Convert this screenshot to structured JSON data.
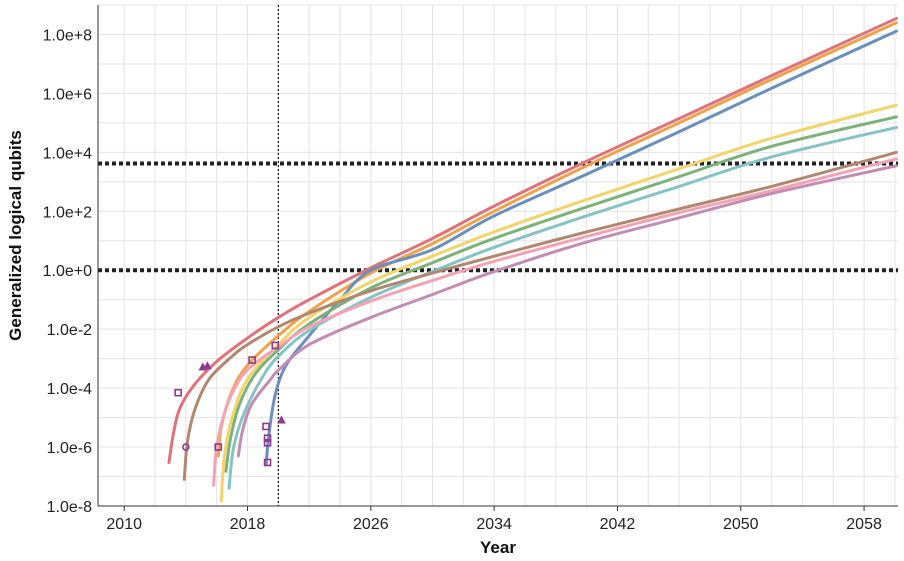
{
  "chart_data": {
    "type": "line",
    "title": "",
    "xlabel": "Year",
    "ylabel": "Generalized logical qubits",
    "y_scale": "log10",
    "xlim": [
      2008.3,
      2060.2
    ],
    "ylim": [
      1e-08,
      1000000000.0
    ],
    "x_ticks": [
      2010,
      2018,
      2026,
      2034,
      2042,
      2050,
      2058
    ],
    "x_tick_labels": [
      "2010",
      "2018",
      "2026",
      "2034",
      "2042",
      "2050",
      "2058"
    ],
    "y_ticks": [
      1e-08,
      1e-06,
      0.0001,
      0.01,
      1,
      100.0,
      10000.0,
      1000000.0,
      100000000.0
    ],
    "y_tick_labels": [
      "1.0e-8",
      "1.0e-6",
      "1.0e-4",
      "1.0e-2",
      "1.0e+0",
      "1.0e+2",
      "1.0e+4",
      "1.0e+6",
      "1.0e+8"
    ],
    "grid": true,
    "legend": "none",
    "reference_lines": {
      "horizontal": [
        {
          "y": 4200,
          "style": "dotted",
          "color": "#222222"
        },
        {
          "y": 1,
          "style": "dotted",
          "color": "#222222"
        }
      ],
      "vertical": [
        {
          "x": 2020.0,
          "style": "dotted",
          "color": "#222222"
        }
      ]
    },
    "series": [
      {
        "color": "#e0737a",
        "points": [
          [
            2012.9,
            3e-07
          ],
          [
            2013.2,
            3e-06
          ],
          [
            2013.6,
            2e-05
          ],
          [
            2014.5,
            0.00012
          ],
          [
            2016,
            0.0008
          ],
          [
            2018,
            0.005
          ],
          [
            2020,
            0.025
          ],
          [
            2022,
            0.1
          ],
          [
            2026,
            1.2
          ],
          [
            2030,
            12
          ],
          [
            2034,
            150
          ],
          [
            2040,
            5000
          ],
          [
            2046,
            140000.0
          ],
          [
            2052,
            4000000.0
          ],
          [
            2060.1,
            350000000.0
          ]
        ]
      },
      {
        "color": "#f0a24a",
        "points": [
          [
            2016.1,
            5e-07
          ],
          [
            2016.3,
            5e-06
          ],
          [
            2017,
            8e-05
          ],
          [
            2018,
            0.0006
          ],
          [
            2020,
            0.006
          ],
          [
            2022,
            0.04
          ],
          [
            2026,
            0.8
          ],
          [
            2030,
            8
          ],
          [
            2034,
            100
          ],
          [
            2040,
            3500
          ],
          [
            2046,
            100000.0
          ],
          [
            2052,
            3000000.0
          ],
          [
            2060.1,
            250000000.0
          ]
        ]
      },
      {
        "color": "#6a8fbd",
        "points": [
          [
            2019.2,
            2.5e-07
          ],
          [
            2019.4,
            3e-06
          ],
          [
            2019.8,
            6e-05
          ],
          [
            2020.5,
            0.0006
          ],
          [
            2022,
            0.006
          ],
          [
            2024,
            0.1
          ],
          [
            2026,
            1
          ],
          [
            2030,
            5
          ],
          [
            2034,
            70
          ],
          [
            2040,
            1800
          ],
          [
            2046,
            50000.0
          ],
          [
            2052,
            1500000.0
          ],
          [
            2060.1,
            130000000.0
          ]
        ]
      },
      {
        "color": "#f2d46a",
        "points": [
          [
            2016.3,
            1.5e-08
          ],
          [
            2016.5,
            5e-07
          ],
          [
            2017,
            1e-05
          ],
          [
            2018,
            0.0002
          ],
          [
            2020,
            0.003
          ],
          [
            2022,
            0.025
          ],
          [
            2026,
            0.4
          ],
          [
            2030,
            3
          ],
          [
            2034,
            20
          ],
          [
            2040,
            250
          ],
          [
            2046,
            2800
          ],
          [
            2052,
            30000.0
          ],
          [
            2060.1,
            400000.0
          ]
        ]
      },
      {
        "color": "#7cb27a",
        "points": [
          [
            2016.6,
            1.5e-07
          ],
          [
            2016.9,
            2e-06
          ],
          [
            2017.5,
            3e-05
          ],
          [
            2018.5,
            0.0003
          ],
          [
            2020,
            0.002
          ],
          [
            2022,
            0.015
          ],
          [
            2026,
            0.25
          ],
          [
            2030,
            1.8
          ],
          [
            2034,
            12
          ],
          [
            2040,
            140
          ],
          [
            2046,
            1500
          ],
          [
            2052,
            16000.0
          ],
          [
            2060.1,
            160000.0
          ]
        ]
      },
      {
        "color": "#86c3c4",
        "points": [
          [
            2016.8,
            4e-08
          ],
          [
            2017.1,
            1e-06
          ],
          [
            2017.8,
            1.5e-05
          ],
          [
            2019,
            0.00025
          ],
          [
            2020,
            0.0012
          ],
          [
            2022,
            0.009
          ],
          [
            2026,
            0.12
          ],
          [
            2030,
            0.9
          ],
          [
            2034,
            6
          ],
          [
            2040,
            70
          ],
          [
            2046,
            700
          ],
          [
            2052,
            7000.0
          ],
          [
            2060.1,
            70000.0
          ]
        ]
      },
      {
        "color": "#b1876f",
        "points": [
          [
            2013.9,
            8e-08
          ],
          [
            2014.1,
            1.5e-06
          ],
          [
            2014.6,
            2e-05
          ],
          [
            2015.5,
            0.0002
          ],
          [
            2017,
            0.0012
          ],
          [
            2018,
            0.003
          ],
          [
            2020,
            0.012
          ],
          [
            2022,
            0.035
          ],
          [
            2026,
            0.2
          ],
          [
            2030,
            0.8
          ],
          [
            2034,
            3
          ],
          [
            2040,
            20
          ],
          [
            2046,
            120
          ],
          [
            2052,
            700
          ],
          [
            2060.1,
            10000.0
          ]
        ]
      },
      {
        "color": "#f4a3b4",
        "points": [
          [
            2015.8,
            5e-08
          ],
          [
            2016,
            1e-06
          ],
          [
            2016.6,
            2e-05
          ],
          [
            2017.5,
            0.0002
          ],
          [
            2018.5,
            0.0007
          ],
          [
            2020,
            0.0025
          ],
          [
            2022,
            0.012
          ],
          [
            2026,
            0.09
          ],
          [
            2030,
            0.45
          ],
          [
            2034,
            2
          ],
          [
            2040,
            14
          ],
          [
            2046,
            90
          ],
          [
            2052,
            500
          ],
          [
            2060.1,
            6000.0
          ]
        ]
      },
      {
        "color": "#c28db5",
        "points": [
          [
            2017.4,
            5e-07
          ],
          [
            2017.7,
            4e-06
          ],
          [
            2018.3,
            3e-05
          ],
          [
            2019.5,
            0.0002
          ],
          [
            2020,
            0.0004
          ],
          [
            2022,
            0.003
          ],
          [
            2026,
            0.025
          ],
          [
            2030,
            0.15
          ],
          [
            2034,
            0.9
          ],
          [
            2040,
            9
          ],
          [
            2046,
            60
          ],
          [
            2052,
            400
          ],
          [
            2060.1,
            3500.0
          ]
        ]
      }
    ],
    "markers": [
      {
        "shape": "square",
        "x": 2013.5,
        "y": 7e-05
      },
      {
        "shape": "circle",
        "x": 2014.0,
        "y": 1e-06
      },
      {
        "shape": "triangle",
        "x": 2015.1,
        "y": 0.0005
      },
      {
        "shape": "triangle",
        "x": 2015.4,
        "y": 0.00055
      },
      {
        "shape": "square",
        "x": 2016.1,
        "y": 1e-06
      },
      {
        "shape": "square",
        "x": 2018.3,
        "y": 0.0009
      },
      {
        "shape": "square",
        "x": 2019.2,
        "y": 5e-06
      },
      {
        "shape": "square",
        "x": 2019.3,
        "y": 2e-06
      },
      {
        "shape": "square",
        "x": 2019.3,
        "y": 1.4e-06
      },
      {
        "shape": "square",
        "x": 2019.3,
        "y": 3e-07
      },
      {
        "shape": "square",
        "x": 2019.8,
        "y": 0.0028
      },
      {
        "shape": "triangle",
        "x": 2020.2,
        "y": 8e-06
      }
    ]
  }
}
